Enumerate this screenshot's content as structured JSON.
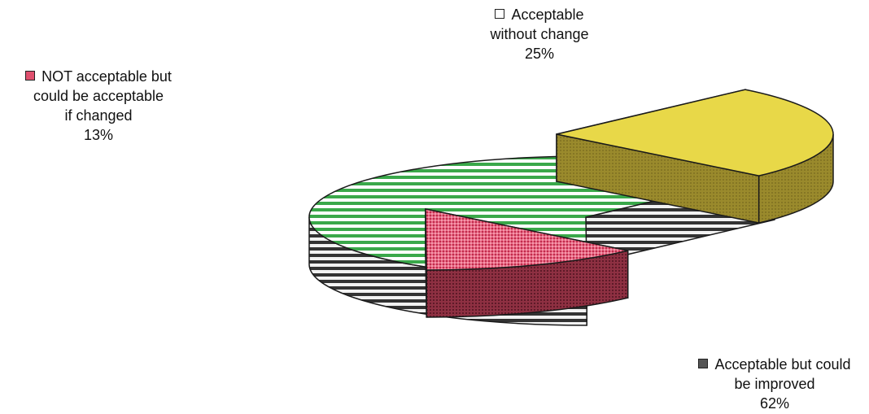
{
  "chart_data": {
    "type": "pie",
    "title": "",
    "slices": [
      {
        "label_lines": [
          "Acceptable",
          "without change"
        ],
        "value": 25,
        "value_label": "25%",
        "color": "#e8d848",
        "side_color": "#9a8a2c",
        "pattern": "solid"
      },
      {
        "label_lines": [
          "NOT acceptable but",
          "could be acceptable",
          "if changed"
        ],
        "value": 13,
        "value_label": "13%",
        "color": "#e0506e",
        "side_color": "#8e3042",
        "pattern": "dotted"
      },
      {
        "label_lines": [
          "Acceptable but could",
          "be improved"
        ],
        "value": 62,
        "value_label": "62%",
        "color": "#3aa84a",
        "side_color": "#3a3a3a",
        "pattern": "horizontal-stripes"
      }
    ],
    "legend": "labels-beside-slices",
    "style": "3d-exploded-pie"
  }
}
